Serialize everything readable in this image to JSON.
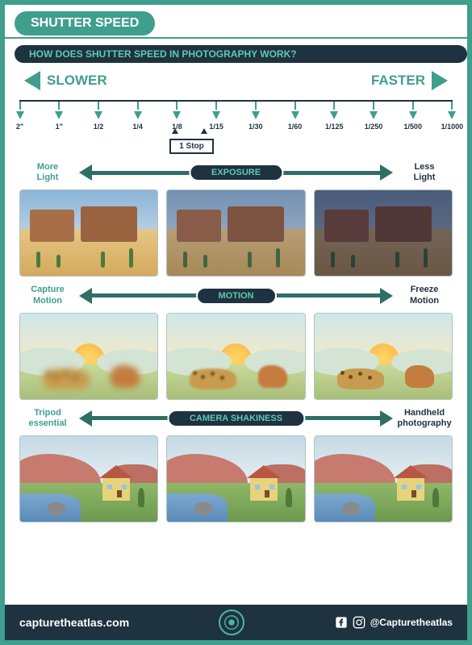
{
  "colors": {
    "teal": "#3f9e8c",
    "teal_dark": "#2d6f63",
    "navy": "#1e3240",
    "gray_text": "#444444",
    "border": "#3f9e8c",
    "subtitle_bg": "#1e3240",
    "subtitle_text": "#5fc9b3",
    "scale_line": "#1e3240",
    "tick_arrow": "#3f9e8c",
    "white": "#ffffff"
  },
  "title": "SHUTTER SPEED",
  "subtitle": "HOW DOES SHUTTER SPEED IN PHOTOGRAPHY WORK?",
  "slower_label": "SLOWER",
  "faster_label": "FASTER",
  "scale": {
    "ticks": [
      "2\"",
      "1\"",
      "1/2",
      "1/4",
      "1/8",
      "1/15",
      "1/30",
      "1/60",
      "1/125",
      "1/250",
      "1/500",
      "1/1000"
    ],
    "stop_label": "1 Stop"
  },
  "sections": [
    {
      "left": "More\nLight",
      "right": "Less\nLight",
      "badge": "EXPOSURE",
      "badge_bg": "#1e3240",
      "badge_fg": "#5fc9b3",
      "line_color": "#2d6f63",
      "left_color": "#3f9e8c",
      "right_color": "#1e3240",
      "scene": "desert",
      "overlays": [
        "rgba(255,255,255,0.0)",
        "rgba(40,40,70,0.25)",
        "rgba(20,20,50,0.55)"
      ]
    },
    {
      "left": "Capture\nMotion",
      "right": "Freeze\nMotion",
      "badge": "MOTION",
      "badge_bg": "#1e3240",
      "badge_fg": "#5fc9b3",
      "line_color": "#2d6f63",
      "left_color": "#3f9e8c",
      "right_color": "#1e3240",
      "scene": "savanna",
      "blur": [
        4,
        1.2,
        0
      ]
    },
    {
      "left": "Tripod\nessential",
      "right": "Handheld\nphotography",
      "badge": "CAMERA SHAKINESS",
      "badge_bg": "#1e3240",
      "badge_fg": "#5fc9b3",
      "line_color": "#2d6f63",
      "left_color": "#3f9e8c",
      "right_color": "#1e3240",
      "scene": "house",
      "shake": [
        0,
        0,
        0
      ]
    }
  ],
  "footer": {
    "url": "capturetheatlas.com",
    "handle": "@Capturetheatlas",
    "bg": "#1e3240"
  }
}
